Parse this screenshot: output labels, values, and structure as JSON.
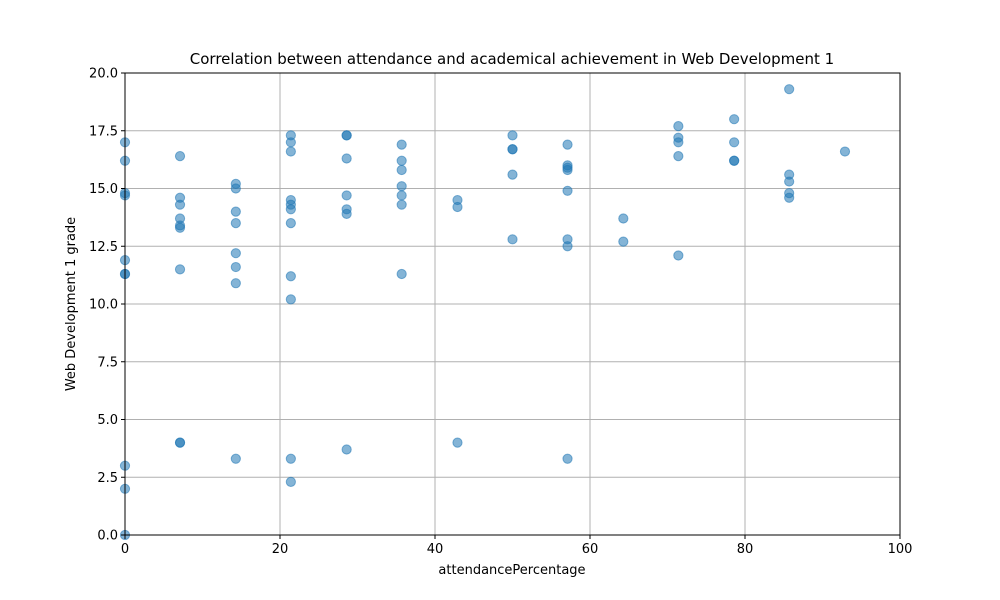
{
  "chart_data": {
    "type": "scatter",
    "title": "Correlation between attendance and academical achievement in Web Development 1",
    "xlabel": "attendancePercentage",
    "ylabel": "Web Development 1 grade",
    "xlim": [
      0,
      100
    ],
    "ylim": [
      0,
      20
    ],
    "xticks": [
      "0",
      "20",
      "40",
      "60",
      "80",
      "100"
    ],
    "yticks": [
      "0.0",
      "2.5",
      "5.0",
      "7.5",
      "10.0",
      "12.5",
      "15.0",
      "17.5",
      "20.0"
    ],
    "grid": true,
    "point_color": "#1f77b4",
    "point_alpha": 0.55,
    "points": [
      [
        0,
        17.0
      ],
      [
        0,
        16.2
      ],
      [
        0,
        14.8
      ],
      [
        0,
        14.7
      ],
      [
        0,
        11.9
      ],
      [
        0,
        11.3
      ],
      [
        0,
        11.3
      ],
      [
        0,
        3.0
      ],
      [
        0,
        2.0
      ],
      [
        0,
        0.0
      ],
      [
        7.1,
        16.4
      ],
      [
        7.1,
        14.6
      ],
      [
        7.1,
        14.3
      ],
      [
        7.1,
        13.7
      ],
      [
        7.1,
        13.4
      ],
      [
        7.1,
        13.3
      ],
      [
        7.1,
        11.5
      ],
      [
        7.1,
        4.0
      ],
      [
        7.1,
        4.0
      ],
      [
        14.3,
        15.2
      ],
      [
        14.3,
        15.0
      ],
      [
        14.3,
        14.0
      ],
      [
        14.3,
        13.5
      ],
      [
        14.3,
        12.2
      ],
      [
        14.3,
        11.6
      ],
      [
        14.3,
        10.9
      ],
      [
        14.3,
        3.3
      ],
      [
        21.4,
        17.3
      ],
      [
        21.4,
        17.0
      ],
      [
        21.4,
        16.6
      ],
      [
        21.4,
        14.5
      ],
      [
        21.4,
        14.3
      ],
      [
        21.4,
        14.1
      ],
      [
        21.4,
        13.5
      ],
      [
        21.4,
        11.2
      ],
      [
        21.4,
        10.2
      ],
      [
        21.4,
        3.3
      ],
      [
        21.4,
        2.3
      ],
      [
        28.6,
        17.3
      ],
      [
        28.6,
        17.3
      ],
      [
        28.6,
        16.3
      ],
      [
        28.6,
        14.7
      ],
      [
        28.6,
        14.1
      ],
      [
        28.6,
        13.9
      ],
      [
        28.6,
        3.7
      ],
      [
        35.7,
        16.9
      ],
      [
        35.7,
        16.2
      ],
      [
        35.7,
        15.8
      ],
      [
        35.7,
        15.1
      ],
      [
        35.7,
        14.7
      ],
      [
        35.7,
        14.3
      ],
      [
        35.7,
        11.3
      ],
      [
        42.9,
        14.5
      ],
      [
        42.9,
        14.2
      ],
      [
        42.9,
        4.0
      ],
      [
        50.0,
        17.3
      ],
      [
        50.0,
        16.7
      ],
      [
        50.0,
        16.7
      ],
      [
        50.0,
        15.6
      ],
      [
        50.0,
        12.8
      ],
      [
        57.1,
        16.9
      ],
      [
        57.1,
        16.0
      ],
      [
        57.1,
        15.9
      ],
      [
        57.1,
        15.8
      ],
      [
        57.1,
        14.9
      ],
      [
        57.1,
        12.8
      ],
      [
        57.1,
        12.5
      ],
      [
        57.1,
        3.3
      ],
      [
        64.3,
        13.7
      ],
      [
        64.3,
        12.7
      ],
      [
        71.4,
        17.7
      ],
      [
        71.4,
        17.2
      ],
      [
        71.4,
        17.0
      ],
      [
        71.4,
        16.4
      ],
      [
        71.4,
        12.1
      ],
      [
        78.6,
        18.0
      ],
      [
        78.6,
        17.0
      ],
      [
        78.6,
        16.2
      ],
      [
        78.6,
        16.2
      ],
      [
        85.7,
        19.3
      ],
      [
        85.7,
        15.6
      ],
      [
        85.7,
        15.3
      ],
      [
        85.7,
        14.8
      ],
      [
        85.7,
        14.6
      ],
      [
        92.9,
        16.6
      ]
    ]
  }
}
